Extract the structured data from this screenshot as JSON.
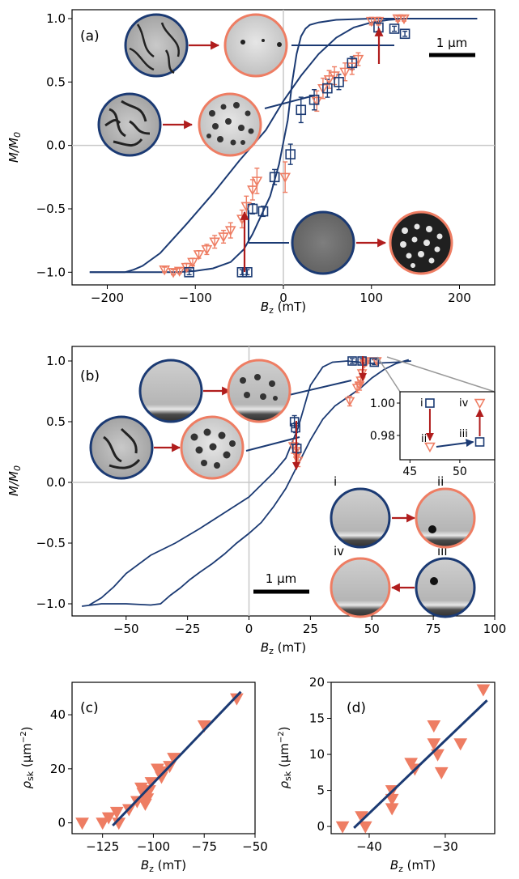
{
  "colors": {
    "navy": "#1b3a73",
    "coral": "#ee7d63",
    "arrow": "#b01d1d",
    "guide": "#c8c8c8"
  },
  "chart_data": [
    {
      "id": "a",
      "type": "line",
      "panel_label": "(a)",
      "xlabel": "B_z (mT)",
      "ylabel": "M/M_0",
      "xlim": [
        -240,
        240
      ],
      "ylim": [
        -1.1,
        1.07
      ],
      "xticks": [
        -200,
        -100,
        0,
        100,
        200
      ],
      "yticks": [
        -1.0,
        -0.5,
        0.0,
        0.5,
        1.0
      ],
      "scale_bar": "1 μm",
      "guides": {
        "x": 0,
        "y": 0
      },
      "series": [
        {
          "role": "loop-ascending",
          "x": [
            -220,
            -180,
            -150,
            -120,
            -100,
            -80,
            -60,
            -45,
            -35,
            -25,
            -15,
            -5,
            5,
            10,
            15,
            20,
            25,
            30,
            40,
            60,
            100,
            220
          ],
          "y": [
            -1.0,
            -1.0,
            -1.0,
            -1.0,
            -0.99,
            -0.97,
            -0.92,
            -0.82,
            -0.7,
            -0.55,
            -0.4,
            -0.15,
            0.2,
            0.5,
            0.72,
            0.86,
            0.92,
            0.95,
            0.97,
            0.99,
            1.0,
            1.0
          ]
        },
        {
          "role": "loop-descending",
          "x": [
            220,
            160,
            140,
            120,
            100,
            80,
            60,
            40,
            20,
            0,
            -20,
            -50,
            -80,
            -110,
            -140,
            -160,
            -170,
            -180,
            -190,
            -220
          ],
          "y": [
            1.0,
            1.0,
            1.0,
            0.99,
            0.97,
            0.93,
            0.85,
            0.72,
            0.55,
            0.35,
            0.12,
            -0.12,
            -0.38,
            -0.62,
            -0.85,
            -0.95,
            -0.98,
            -1.0,
            -1.0,
            -1.0
          ]
        },
        {
          "role": "square-markers",
          "x": [
            -107,
            -47,
            -41,
            -35,
            -23,
            -10,
            8,
            20,
            35,
            50,
            63,
            78,
            108,
            126,
            138
          ],
          "y": [
            -1.0,
            -1.0,
            -1.0,
            -0.5,
            -0.52,
            -0.25,
            -0.07,
            0.28,
            0.36,
            0.45,
            0.5,
            0.65,
            0.93,
            0.92,
            0.88
          ],
          "yerr": [
            0.02,
            0.02,
            0.02,
            0.04,
            0.04,
            0.06,
            0.08,
            0.1,
            0.08,
            0.07,
            0.06,
            0.05,
            0.03,
            0.02,
            0.02
          ]
        },
        {
          "role": "triangle-markers",
          "x": [
            -135,
            -125,
            -118,
            -110,
            -103,
            -96,
            -87,
            -78,
            -68,
            -60,
            -47,
            -42,
            -35,
            -30,
            2,
            38,
            45,
            52,
            58,
            70,
            78,
            85,
            100,
            108,
            130,
            137
          ],
          "y": [
            -0.98,
            -1.0,
            -0.99,
            -0.96,
            -0.92,
            -0.86,
            -0.82,
            -0.76,
            -0.72,
            -0.67,
            -0.58,
            -0.48,
            -0.35,
            -0.28,
            -0.25,
            0.35,
            0.45,
            0.52,
            0.55,
            0.58,
            0.62,
            0.68,
            0.98,
            0.98,
            1.0,
            1.0
          ],
          "yerr": [
            0.02,
            0.02,
            0.02,
            0.03,
            0.03,
            0.03,
            0.04,
            0.05,
            0.05,
            0.06,
            0.07,
            0.08,
            0.08,
            0.1,
            0.12,
            0.08,
            0.08,
            0.07,
            0.07,
            0.07,
            0.06,
            0.05,
            0.03,
            0.03,
            0.02,
            0.02
          ]
        }
      ]
    },
    {
      "id": "b",
      "type": "line",
      "panel_label": "(b)",
      "xlabel": "B_z (mT)",
      "ylabel": "M/M_0",
      "xlim": [
        -72,
        100
      ],
      "ylim": [
        -1.1,
        1.12
      ],
      "xticks": [
        -50,
        -25,
        0,
        25,
        50,
        75,
        100
      ],
      "yticks": [
        -1.0,
        -0.5,
        0.0,
        0.5,
        1.0
      ],
      "scale_bar": "1 μm",
      "image_labels": [
        "i",
        "ii",
        "iii",
        "iv"
      ],
      "guides": {
        "x": 0,
        "y": 0
      },
      "series": [
        {
          "role": "loop-ascending",
          "x": [
            -68,
            -60,
            -50,
            -40,
            -36,
            -32,
            -28,
            -24,
            -20,
            -15,
            -10,
            -5,
            0,
            5,
            10,
            15,
            20,
            25,
            30,
            35,
            40,
            45,
            50,
            55,
            60,
            65
          ],
          "y": [
            -1.02,
            -1.0,
            -1.0,
            -1.01,
            -1.0,
            -0.93,
            -0.87,
            -0.8,
            -0.74,
            -0.67,
            -0.59,
            -0.5,
            -0.42,
            -0.33,
            -0.2,
            -0.05,
            0.15,
            0.35,
            0.52,
            0.63,
            0.7,
            0.77,
            0.86,
            0.93,
            0.98,
            1.01
          ]
        },
        {
          "role": "loop-descending",
          "x": [
            66,
            60,
            50,
            40,
            34,
            30,
            25,
            20,
            15,
            10,
            5,
            0,
            -10,
            -20,
            -30,
            -40,
            -50,
            -55,
            -60,
            -65
          ],
          "y": [
            1.0,
            0.99,
            0.98,
            1.0,
            0.99,
            0.95,
            0.8,
            0.45,
            0.2,
            0.08,
            -0.02,
            -0.12,
            -0.25,
            -0.38,
            -0.5,
            -0.6,
            -0.75,
            -0.86,
            -0.95,
            -1.01
          ]
        },
        {
          "role": "square-markers",
          "x": [
            18.5,
            19,
            19.5,
            42,
            46,
            51
          ],
          "y": [
            0.5,
            0.45,
            0.28,
            1.0,
            1.0,
            0.99
          ],
          "yerr": [
            0.05,
            0.04,
            0.04,
            0.02,
            0.02,
            0.02
          ]
        },
        {
          "role": "triangle-markers",
          "x": [
            18,
            19,
            19.5,
            20,
            41,
            44,
            45,
            45.5,
            46,
            47,
            48,
            52
          ],
          "y": [
            0.3,
            0.26,
            0.22,
            0.18,
            0.67,
            0.78,
            0.8,
            0.84,
            0.9,
            0.98,
            1.0,
            1.0
          ],
          "yerr": [
            0.06,
            0.05,
            0.05,
            0.05,
            0.04,
            0.04,
            0.04,
            0.03,
            0.03,
            0.02,
            0.02,
            0.02
          ]
        }
      ],
      "inset": {
        "xlim": [
          44,
          53.5
        ],
        "ylim": [
          0.965,
          1.007
        ],
        "xticks": [
          45,
          50
        ],
        "yticks": [
          0.98,
          1.0
        ],
        "points": [
          {
            "label": "i",
            "marker": "square",
            "x": 47,
            "y": 1.0
          },
          {
            "label": "ii",
            "marker": "triangle",
            "x": 47,
            "y": 0.973
          },
          {
            "label": "iii",
            "marker": "square",
            "x": 52,
            "y": 0.976
          },
          {
            "label": "iv",
            "marker": "triangle",
            "x": 52,
            "y": 1.0
          }
        ]
      }
    },
    {
      "id": "c",
      "type": "scatter",
      "panel_label": "(c)",
      "xlabel": "B_z (mT)",
      "ylabel": "ρ_sk (μm⁻²)",
      "xlim": [
        -140,
        -50
      ],
      "ylim": [
        -4,
        52
      ],
      "xticks": [
        -125,
        -100,
        -75,
        -50
      ],
      "yticks": [
        0,
        20,
        40
      ],
      "points": {
        "x": [
          -135,
          -125,
          -122,
          -118,
          -117,
          -112,
          -108,
          -106,
          -105,
          -104,
          -103,
          -102,
          -101,
          -98,
          -96,
          -95,
          -92,
          -90,
          -75,
          -59
        ],
        "y": [
          0,
          0,
          2,
          4,
          0,
          5,
          8,
          13,
          11,
          7,
          9,
          12,
          15,
          20,
          17,
          19,
          21,
          24,
          36,
          46
        ]
      },
      "fit": {
        "x": [
          -120,
          -57
        ],
        "y": [
          -1,
          48.5
        ]
      }
    },
    {
      "id": "d",
      "type": "scatter",
      "panel_label": "(d)",
      "xlabel": "B_z (mT)",
      "ylabel": "ρ_sk (μm⁻²)",
      "xlim": [
        -45,
        -23.5
      ],
      "ylim": [
        -1,
        20
      ],
      "xticks": [
        -40,
        -30
      ],
      "yticks": [
        0,
        5,
        10,
        15,
        20
      ],
      "points": {
        "x": [
          -43.5,
          -41,
          -40.5,
          -37,
          -37,
          -37,
          -34.5,
          -34,
          -31.5,
          -31.5,
          -31,
          -30.5,
          -28,
          -25
        ],
        "y": [
          0,
          1.4,
          0,
          5,
          3.8,
          2.5,
          8.8,
          8,
          14,
          11.5,
          10,
          7.5,
          11.5,
          19
        ]
      },
      "fit": {
        "x": [
          -42,
          -24.5
        ],
        "y": [
          -0.2,
          17.5
        ]
      }
    }
  ]
}
